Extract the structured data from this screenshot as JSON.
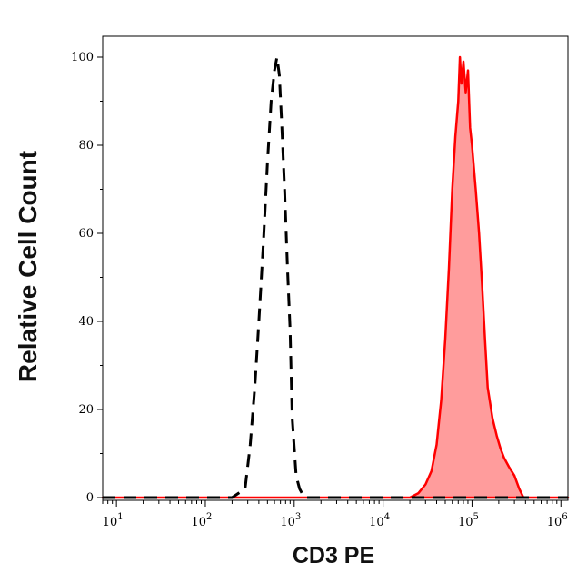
{
  "chart_data": {
    "type": "area",
    "xlabel": "CD3 PE",
    "ylabel": "Relative Cell Count",
    "x_scale": "log",
    "xlim": [
      7,
      1200000
    ],
    "ylim": [
      0,
      100
    ],
    "x_ticks": [
      {
        "value": 10,
        "base": "10",
        "exp": "1"
      },
      {
        "value": 100,
        "base": "10",
        "exp": "2"
      },
      {
        "value": 1000,
        "base": "10",
        "exp": "3"
      },
      {
        "value": 10000,
        "base": "10",
        "exp": "4"
      },
      {
        "value": 100000,
        "base": "10",
        "exp": "5"
      },
      {
        "value": 1000000,
        "base": "10",
        "exp": "6"
      }
    ],
    "y_ticks": [
      {
        "value": 0,
        "label": "0"
      },
      {
        "value": 20,
        "label": "20"
      },
      {
        "value": 40,
        "label": "40"
      },
      {
        "value": 60,
        "label": "60"
      },
      {
        "value": 80,
        "label": "80"
      },
      {
        "value": 100,
        "label": "100"
      }
    ],
    "grid": false,
    "series": [
      {
        "style": "dashed",
        "color": "#000000",
        "fill": "none",
        "x": [
          7,
          200,
          280,
          320,
          360,
          400,
          450,
          500,
          550,
          600,
          640,
          680,
          720,
          780,
          840,
          900,
          950,
          1050,
          1150,
          1300,
          2000,
          1200000
        ],
        "y": [
          0,
          0,
          2,
          12,
          25,
          40,
          58,
          76,
          90,
          97,
          100,
          96,
          86,
          70,
          52,
          38,
          18,
          5,
          2,
          0,
          0,
          0
        ]
      },
      {
        "style": "solid",
        "color": "#ff0000",
        "fill": "#ff9c9c",
        "x": [
          7,
          10000,
          20000,
          25000,
          30000,
          35000,
          40000,
          45000,
          50000,
          55000,
          60000,
          65000,
          70000,
          73000,
          76000,
          80000,
          85000,
          90000,
          95000,
          100000,
          110000,
          120000,
          130000,
          140000,
          150000,
          170000,
          190000,
          210000,
          230000,
          260000,
          300000,
          340000,
          380000,
          1200000
        ],
        "y": [
          0,
          0,
          0,
          1,
          3,
          6,
          12,
          22,
          36,
          52,
          70,
          82,
          90,
          100,
          94,
          99,
          92,
          97,
          84,
          80,
          70,
          60,
          48,
          36,
          25,
          18,
          14,
          11,
          9,
          7,
          5,
          2,
          0,
          0
        ]
      }
    ]
  }
}
